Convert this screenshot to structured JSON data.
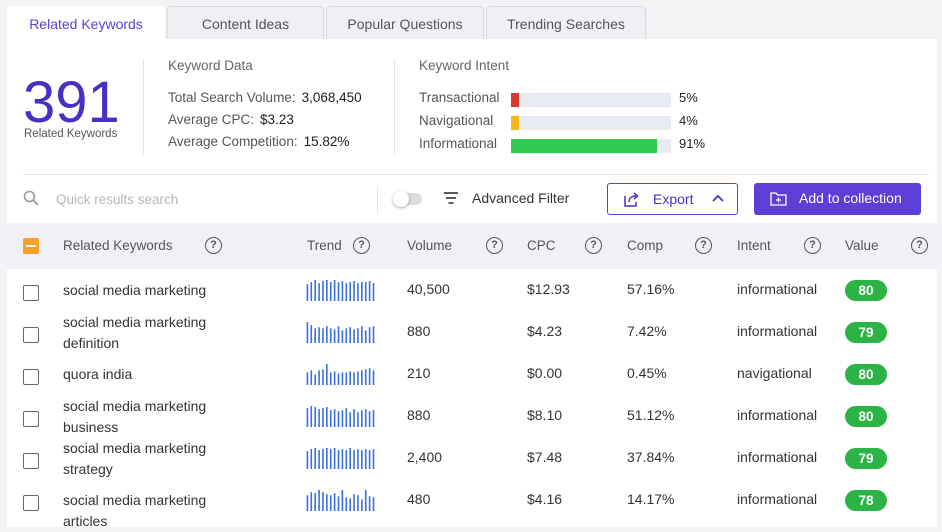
{
  "tabs": [
    {
      "label": "Related Keywords",
      "active": true
    },
    {
      "label": "Content Ideas",
      "active": false
    },
    {
      "label": "Popular Questions",
      "active": false
    },
    {
      "label": "Trending Searches",
      "active": false
    }
  ],
  "summary": {
    "count": "391",
    "count_label": "Related Keywords"
  },
  "keyword_data": {
    "title": "Keyword Data",
    "rows": [
      {
        "label": "Total Search Volume:",
        "value": "3,068,450"
      },
      {
        "label": "Average CPC:",
        "value": "$3.23"
      },
      {
        "label": "Average Competition:",
        "value": "15.82%"
      }
    ]
  },
  "keyword_intent": {
    "title": "Keyword Intent",
    "rows": [
      {
        "label": "Transactional",
        "value": "5%",
        "fraction": 0.05,
        "color": "#d63a2a"
      },
      {
        "label": "Navigational",
        "value": "4%",
        "fraction": 0.04,
        "color": "#f6b71c"
      },
      {
        "label": "Informational",
        "value": "91%",
        "fraction": 0.91,
        "color": "#2fcc52"
      }
    ]
  },
  "toolbar": {
    "search_placeholder": "Quick results search",
    "advanced_filter_label": "Advanced Filter",
    "export_label": "Export",
    "add_collection_label": "Add to collection"
  },
  "table": {
    "columns": [
      {
        "key": "keyword",
        "label": "Related Keywords"
      },
      {
        "key": "trend",
        "label": "Trend"
      },
      {
        "key": "volume",
        "label": "Volume"
      },
      {
        "key": "cpc",
        "label": "CPC"
      },
      {
        "key": "comp",
        "label": "Comp"
      },
      {
        "key": "intent",
        "label": "Intent"
      },
      {
        "key": "value",
        "label": "Value"
      }
    ],
    "rows": [
      {
        "keyword": "social media marketing",
        "volume": "40,500",
        "cpc": "$12.93",
        "comp": "57.16%",
        "intent": "informational",
        "value": "80",
        "trend": [
          0.8,
          0.9,
          1.0,
          0.85,
          0.95,
          1.0,
          0.9,
          1.0,
          0.9,
          0.95,
          0.85,
          0.9,
          0.95,
          0.85,
          0.9,
          0.9,
          0.95,
          0.85
        ]
      },
      {
        "keyword": "social media marketing definition",
        "volume": "880",
        "cpc": "$4.23",
        "comp": "7.42%",
        "intent": "informational",
        "value": "79",
        "trend": [
          1.0,
          0.85,
          0.7,
          0.75,
          0.7,
          0.8,
          0.7,
          0.65,
          0.8,
          0.6,
          0.7,
          0.75,
          0.65,
          0.7,
          0.8,
          0.6,
          0.75,
          0.8
        ]
      },
      {
        "keyword": "quora india",
        "volume": "210",
        "cpc": "$0.00",
        "comp": "0.45%",
        "intent": "navigational",
        "value": "80",
        "trend": [
          0.6,
          0.7,
          0.5,
          0.7,
          0.75,
          1.0,
          0.6,
          0.65,
          0.55,
          0.6,
          0.6,
          0.65,
          0.6,
          0.65,
          0.7,
          0.75,
          0.8,
          0.7
        ]
      },
      {
        "keyword": "social media marketing business",
        "volume": "880",
        "cpc": "$8.10",
        "comp": "51.12%",
        "intent": "informational",
        "value": "80",
        "trend": [
          0.9,
          1.0,
          0.95,
          0.85,
          0.9,
          0.95,
          0.8,
          0.85,
          0.75,
          0.8,
          0.9,
          0.7,
          0.85,
          0.7,
          0.8,
          0.85,
          0.75,
          0.8
        ]
      },
      {
        "keyword": "social media marketing strategy",
        "volume": "2,400",
        "cpc": "$7.48",
        "comp": "37.84%",
        "intent": "informational",
        "value": "79",
        "trend": [
          0.85,
          0.95,
          1.0,
          0.9,
          0.95,
          1.0,
          0.95,
          1.0,
          0.9,
          0.95,
          0.9,
          1.0,
          0.9,
          0.95,
          0.9,
          0.95,
          0.9,
          0.95
        ]
      },
      {
        "keyword": "social media marketing articles",
        "volume": "480",
        "cpc": "$4.16",
        "comp": "14.17%",
        "intent": "informational",
        "value": "78",
        "trend": [
          0.75,
          0.9,
          0.85,
          1.0,
          0.9,
          0.8,
          0.75,
          0.85,
          0.7,
          1.0,
          0.65,
          0.6,
          0.8,
          0.75,
          0.55,
          1.0,
          0.7,
          0.65
        ]
      }
    ]
  },
  "colors": {
    "accent": "#5b3fd6",
    "value_badge": "#2bb346",
    "trend_bar": "#3a6fdd",
    "header_checkbox": "#f7a12b"
  }
}
